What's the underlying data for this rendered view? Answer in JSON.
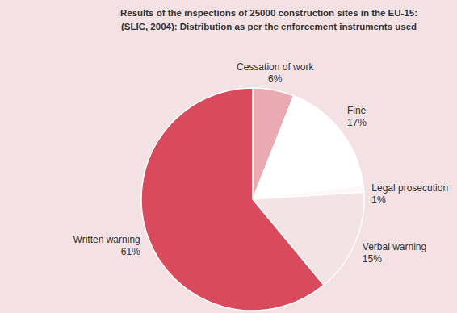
{
  "chart_data": {
    "type": "pie",
    "title": "Results of the inspections of 25000 construction sites in the EU-15:",
    "subtitle": "(SLIC, 2004): Distribution as per the enforcement instruments used",
    "categories": [
      "Cessation of work",
      "Fine",
      "Legal prosecution",
      "Verbal warning",
      "Written warning"
    ],
    "values": [
      6,
      17,
      1,
      15,
      61
    ],
    "value_labels": [
      "6%",
      "17%",
      "1%",
      "15%",
      "61%"
    ],
    "colors": [
      "#e9aab2",
      "#ffffff",
      "#fdf7f8",
      "#f3e3e5",
      "#d84a5c"
    ],
    "data_labels": true
  }
}
